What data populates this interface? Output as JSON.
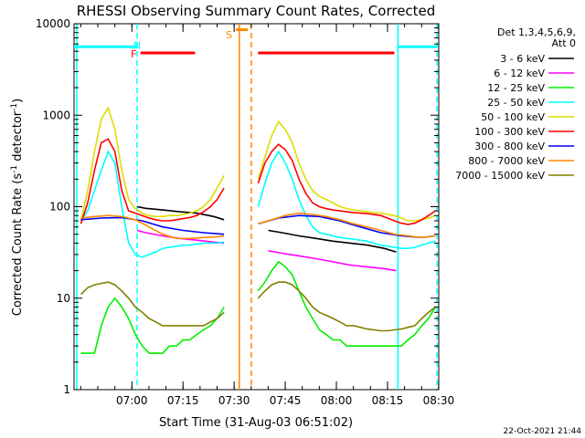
{
  "chart_data": {
    "type": "line",
    "title": "RHESSI Observing Summary Count Rates, Corrected",
    "xlabel": "Start Time (31-Aug-03 06:51:02)",
    "ylabel": "Corrected Count Rate (s",
    "ylabel_sup": "-1",
    "ylabel_mid": " detector",
    "ylabel_end": ")",
    "yscale": "log",
    "ylim": [
      1,
      10000
    ],
    "xlim_minutes": [
      -8,
      99
    ],
    "y_ticks": [
      {
        "value": 1,
        "label": "1"
      },
      {
        "value": 10,
        "label": "10"
      },
      {
        "value": 100,
        "label": "100"
      },
      {
        "value": 1000,
        "label": "1000"
      },
      {
        "value": 10000,
        "label": "10000"
      }
    ],
    "x_ticks": [
      {
        "value": 8.97,
        "label": "07:00"
      },
      {
        "value": 23.97,
        "label": "07:15"
      },
      {
        "value": 38.97,
        "label": "07:30"
      },
      {
        "value": 53.97,
        "label": "07:45"
      },
      {
        "value": 68.97,
        "label": "08:00"
      },
      {
        "value": 83.97,
        "label": "08:15"
      },
      {
        "value": 98.97,
        "label": "08:30"
      }
    ],
    "legend_header": [
      "Det 1,3,4,5,6,9,",
      "Att 0"
    ],
    "legend_position": "right",
    "series": [
      {
        "name": "3 - 6 keV",
        "color": "#000000",
        "x": [
          10.5,
          13,
          18,
          23,
          28,
          33,
          36,
          49,
          53,
          58,
          63,
          68,
          73,
          78,
          83,
          86.5
        ],
        "y": [
          100,
          96,
          92,
          88,
          85,
          78,
          72,
          55,
          52,
          48,
          45,
          42,
          40,
          38,
          35,
          32
        ]
      },
      {
        "name": "6 - 12 keV",
        "color": "#ff00ff",
        "x": [
          10.5,
          13,
          18,
          23,
          28,
          33,
          36,
          49,
          53,
          58,
          63,
          68,
          73,
          78,
          83,
          86.5
        ],
        "y": [
          55,
          52,
          48,
          45,
          43,
          41,
          40,
          33,
          31,
          29,
          27,
          25,
          23,
          22,
          21,
          20
        ]
      },
      {
        "name": "12 - 25 keV",
        "color": "#00ee00",
        "x": [
          -6,
          -4,
          -2,
          0,
          2,
          4,
          6,
          8,
          10,
          12,
          14,
          16,
          18,
          20,
          22,
          24,
          26,
          28,
          30,
          32,
          34,
          36,
          46,
          48,
          50,
          52,
          54,
          56,
          58,
          60,
          62,
          64,
          66,
          68,
          70,
          72,
          74,
          76,
          78,
          80,
          82,
          84,
          86,
          88,
          90,
          92,
          94,
          96,
          98
        ],
        "y": [
          2.5,
          2.5,
          2.5,
          5,
          8,
          10,
          8,
          6,
          4,
          3,
          2.5,
          2.5,
          2.5,
          3,
          3,
          3.5,
          3.5,
          4,
          4.5,
          5,
          6,
          8,
          12,
          15,
          20,
          25,
          22,
          18,
          12,
          8,
          6,
          4.5,
          4,
          3.5,
          3.5,
          3,
          3,
          3,
          3,
          3,
          3,
          3,
          3,
          3,
          3.5,
          4,
          5,
          6,
          8
        ]
      },
      {
        "name": "25 - 50 keV",
        "color": "#00ffff",
        "x": [
          -6,
          -4,
          -2,
          0,
          2,
          4,
          6,
          8,
          10,
          12,
          14,
          16,
          18,
          20,
          22,
          24,
          26,
          28,
          30,
          32,
          34,
          36,
          46,
          48,
          50,
          52,
          54,
          56,
          58,
          60,
          62,
          64,
          66,
          68,
          70,
          72,
          74,
          76,
          78,
          80,
          82,
          84,
          86,
          88,
          90,
          92,
          94,
          96,
          98
        ],
        "y": [
          70,
          90,
          150,
          250,
          400,
          300,
          100,
          40,
          30,
          28,
          30,
          32,
          35,
          36,
          37,
          38,
          38,
          39,
          40,
          40,
          40,
          41,
          100,
          180,
          300,
          400,
          300,
          200,
          120,
          80,
          60,
          52,
          50,
          48,
          46,
          45,
          44,
          43,
          42,
          40,
          38,
          37,
          36,
          35,
          35,
          36,
          38,
          40,
          42
        ]
      },
      {
        "name": "50 - 100 keV",
        "color": "#dddd00",
        "x": [
          -6,
          -4,
          -2,
          0,
          2,
          4,
          6,
          8,
          10,
          12,
          14,
          16,
          18,
          20,
          22,
          24,
          26,
          28,
          30,
          32,
          34,
          36,
          46,
          48,
          50,
          52,
          54,
          56,
          58,
          60,
          62,
          64,
          66,
          68,
          70,
          72,
          74,
          76,
          78,
          80,
          82,
          84,
          86,
          88,
          90,
          92,
          94,
          96,
          98
        ],
        "y": [
          70,
          150,
          400,
          900,
          1200,
          700,
          250,
          120,
          95,
          85,
          80,
          78,
          78,
          80,
          80,
          82,
          85,
          90,
          100,
          120,
          160,
          220,
          200,
          350,
          600,
          850,
          700,
          500,
          300,
          200,
          150,
          130,
          120,
          110,
          100,
          95,
          92,
          90,
          88,
          86,
          85,
          82,
          80,
          75,
          70,
          70,
          72,
          75,
          80
        ]
      },
      {
        "name": "100 - 300 keV",
        "color": "#ff0000",
        "x": [
          -6,
          -4,
          -2,
          0,
          2,
          4,
          6,
          8,
          10,
          12,
          14,
          16,
          18,
          20,
          22,
          24,
          26,
          28,
          30,
          32,
          34,
          36,
          46,
          48,
          50,
          52,
          54,
          56,
          58,
          60,
          62,
          64,
          66,
          68,
          70,
          72,
          74,
          76,
          78,
          80,
          82,
          84,
          86,
          88,
          90,
          92,
          94,
          96,
          98
        ],
        "y": [
          65,
          110,
          250,
          500,
          550,
          400,
          150,
          90,
          85,
          80,
          75,
          72,
          70,
          70,
          72,
          74,
          76,
          80,
          88,
          100,
          120,
          160,
          180,
          300,
          400,
          480,
          420,
          320,
          200,
          140,
          110,
          100,
          95,
          92,
          90,
          88,
          86,
          85,
          84,
          82,
          80,
          75,
          70,
          66,
          64,
          66,
          72,
          80,
          90
        ]
      },
      {
        "name": "300 - 800 keV",
        "color": "#0000ff",
        "x": [
          -6,
          0,
          6,
          12,
          18,
          24,
          30,
          36,
          46,
          52,
          58,
          64,
          70,
          76,
          82,
          88,
          94,
          98
        ],
        "y": [
          72,
          75,
          76,
          70,
          60,
          55,
          52,
          50,
          65,
          75,
          80,
          78,
          70,
          60,
          52,
          48,
          46,
          48
        ]
      },
      {
        "name": "800 - 7000 keV",
        "color": "#ff8800",
        "x": [
          -6,
          -2,
          2,
          6,
          10,
          14,
          18,
          22,
          26,
          30,
          34,
          36,
          46,
          50,
          54,
          58,
          62,
          66,
          70,
          74,
          78,
          82,
          86,
          90,
          94,
          98
        ],
        "y": [
          75,
          78,
          80,
          78,
          72,
          60,
          50,
          45,
          45,
          46,
          47,
          48,
          65,
          72,
          80,
          85,
          82,
          78,
          72,
          65,
          60,
          55,
          50,
          48,
          46,
          48
        ]
      },
      {
        "name": "7000 - 15000 keV",
        "color": "#808000",
        "x": [
          -6,
          -4,
          -2,
          0,
          2,
          4,
          6,
          8,
          10,
          12,
          14,
          16,
          18,
          20,
          22,
          24,
          26,
          28,
          30,
          32,
          34,
          36,
          46,
          48,
          50,
          52,
          54,
          56,
          58,
          60,
          62,
          64,
          66,
          68,
          70,
          72,
          74,
          76,
          78,
          80,
          82,
          84,
          86,
          88,
          90,
          92,
          94,
          96,
          98
        ],
        "y": [
          11,
          13,
          14,
          14.5,
          15,
          14,
          12,
          10,
          8,
          7,
          6,
          5.5,
          5,
          5,
          5,
          5,
          5,
          5,
          5,
          5.5,
          6,
          7,
          10,
          12,
          14,
          15,
          15,
          14,
          12,
          10,
          8,
          7,
          6.5,
          6,
          5.5,
          5,
          5,
          4.8,
          4.6,
          4.5,
          4.4,
          4.4,
          4.5,
          4.6,
          4.8,
          5,
          6,
          7,
          8
        ]
      }
    ],
    "annotations": [
      {
        "label": "N",
        "color": "#00ffff",
        "x": 10.5,
        "y": 5800
      },
      {
        "label": "F",
        "color": "#ff0000",
        "x": 9.5,
        "y": 4700
      },
      {
        "label": "S",
        "color": "#ff8800",
        "x": 37.5,
        "y": 7600
      }
    ],
    "bars": [
      {
        "kind": "N",
        "color": "#00ffff",
        "x0": -8,
        "x1": 10.5,
        "y": 5600
      },
      {
        "kind": "N",
        "color": "#00ffff",
        "x0": 87,
        "x1": 98.5,
        "y": 5600
      },
      {
        "kind": "F",
        "color": "#ff0000",
        "x0": 11.5,
        "x1": 27.5,
        "y": 4800
      },
      {
        "kind": "F",
        "color": "#ff0000",
        "x0": 46,
        "x1": 86,
        "y": 4800
      },
      {
        "kind": "S",
        "color": "#ff8800",
        "x0": 39.5,
        "x1": 43,
        "y": 8600
      }
    ],
    "vlines": [
      {
        "x": -7.2,
        "color": "#00ffff",
        "style": "solid"
      },
      {
        "x": 10.5,
        "color": "#00ffff",
        "style": "dashed"
      },
      {
        "x": 87,
        "color": "#00ffff",
        "style": "solid"
      },
      {
        "x": 98.5,
        "color": "#00ffff",
        "style": "dashed"
      },
      {
        "x": 40.5,
        "color": "#ff8800",
        "style": "solid"
      },
      {
        "x": 44,
        "color": "#ff8800",
        "style": "dashed"
      }
    ],
    "timestamp": "22-Oct-2021 21:44"
  }
}
